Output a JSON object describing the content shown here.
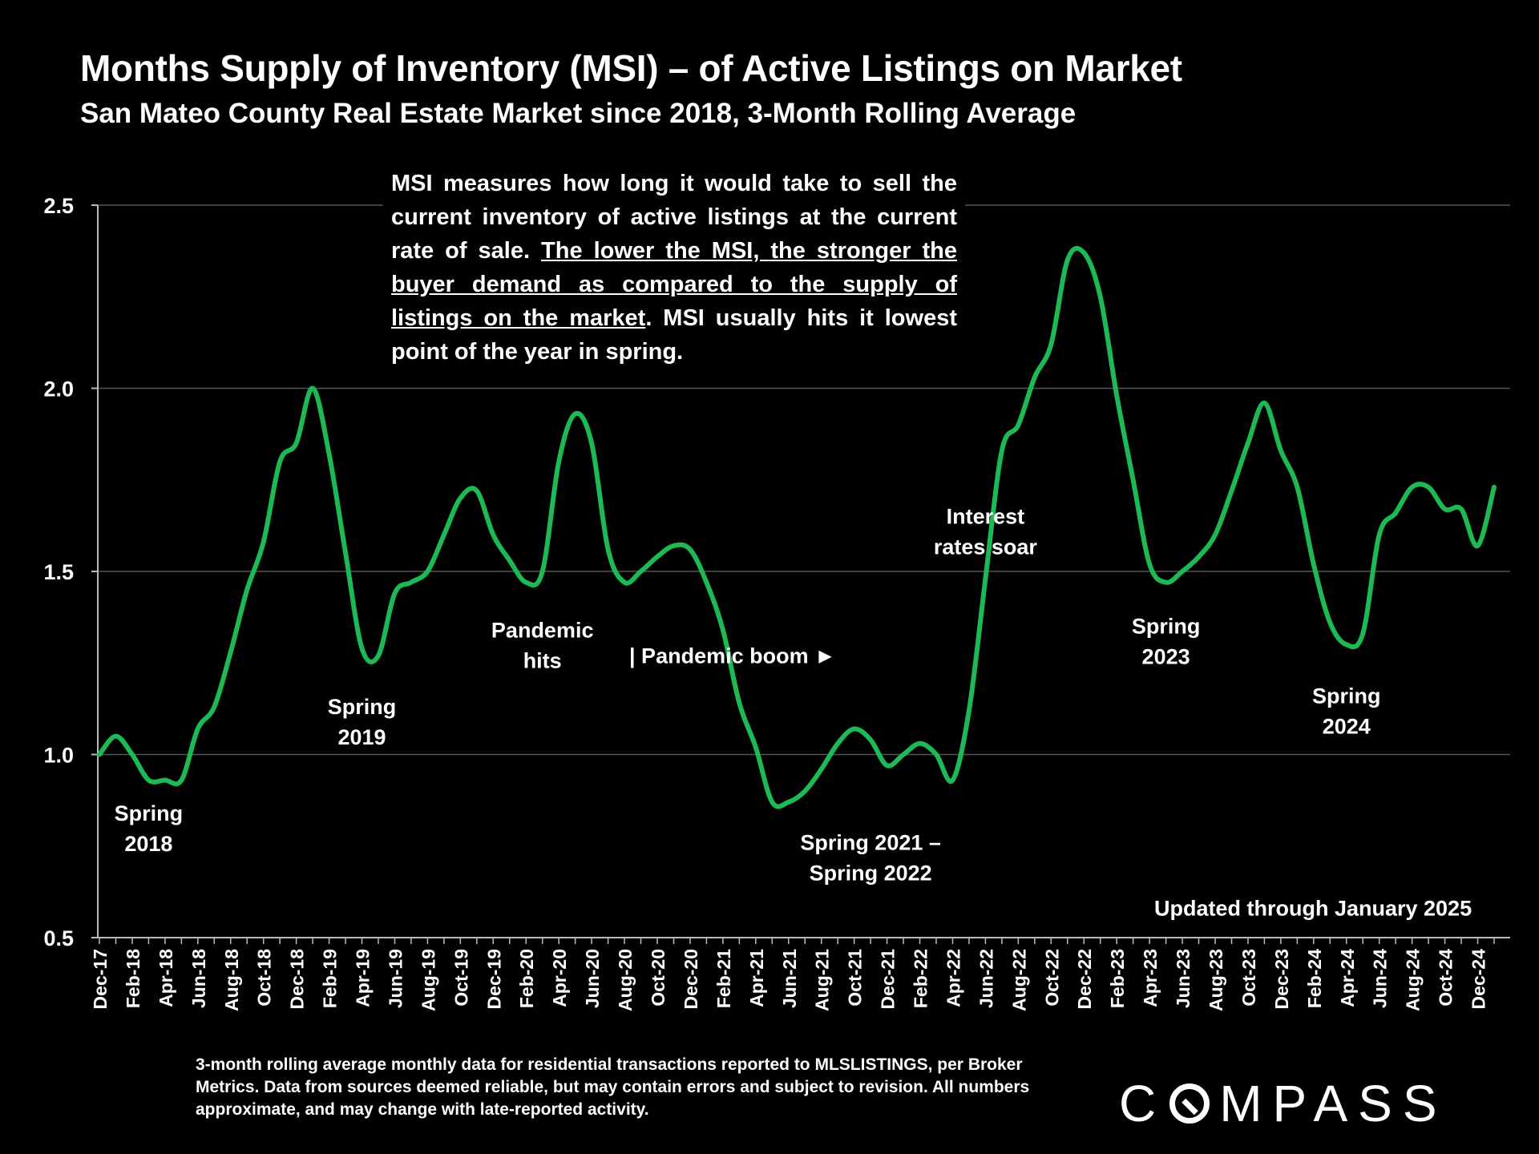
{
  "title": "Months Supply of Inventory (MSI) – of Active Listings on Market",
  "subtitle": "San Mateo County Real Estate Market since 2018, 3-Month Rolling Average",
  "note": {
    "part1": "MSI measures how long it would take to sell the current inventory of active listings at the current rate of sale. ",
    "underlined": "The lower the MSI, the stronger the buyer demand as compared to the supply of listings on the market",
    "part2": ".  MSI usually hits it lowest point of the year in spring."
  },
  "footnote": "3-month rolling average monthly data for residential transactions reported to MLSLISTINGS, per Broker Metrics. Data from sources deemed reliable, but may contain errors and subject to revision. All numbers approximate, and may change with late-reported activity.",
  "logo": {
    "left": "C",
    "right": "MPASS"
  },
  "colors": {
    "line": "#1db954",
    "background": "#000000",
    "text": "#ffffff",
    "grid": "#555555"
  },
  "chart_data": {
    "type": "line",
    "x": [
      "Dec-17",
      "Jan-18",
      "Feb-18",
      "Mar-18",
      "Apr-18",
      "May-18",
      "Jun-18",
      "Jul-18",
      "Aug-18",
      "Sep-18",
      "Oct-18",
      "Nov-18",
      "Dec-18",
      "Jan-19",
      "Feb-19",
      "Mar-19",
      "Apr-19",
      "May-19",
      "Jun-19",
      "Jul-19",
      "Aug-19",
      "Sep-19",
      "Oct-19",
      "Nov-19",
      "Dec-19",
      "Jan-20",
      "Feb-20",
      "Mar-20",
      "Apr-20",
      "May-20",
      "Jun-20",
      "Jul-20",
      "Aug-20",
      "Sep-20",
      "Oct-20",
      "Nov-20",
      "Dec-20",
      "Jan-21",
      "Feb-21",
      "Mar-21",
      "Apr-21",
      "May-21",
      "Jun-21",
      "Jul-21",
      "Aug-21",
      "Sep-21",
      "Oct-21",
      "Nov-21",
      "Dec-21",
      "Jan-22",
      "Feb-22",
      "Mar-22",
      "Apr-22",
      "May-22",
      "Jun-22",
      "Jul-22",
      "Aug-22",
      "Sep-22",
      "Oct-22",
      "Nov-22",
      "Dec-22",
      "Jan-23",
      "Feb-23",
      "Mar-23",
      "Apr-23",
      "May-23",
      "Jun-23",
      "Jul-23",
      "Aug-23",
      "Sep-23",
      "Oct-23",
      "Nov-23",
      "Dec-23",
      "Jan-24",
      "Feb-24",
      "Mar-24",
      "Apr-24",
      "May-24",
      "Jun-24",
      "Jul-24",
      "Aug-24",
      "Sep-24",
      "Oct-24",
      "Nov-24",
      "Dec-24",
      "Jan-25"
    ],
    "xticks": [
      "Dec-17",
      "Feb-18",
      "Apr-18",
      "Jun-18",
      "Aug-18",
      "Oct-18",
      "Dec-18",
      "Feb-19",
      "Apr-19",
      "Jun-19",
      "Aug-19",
      "Oct-19",
      "Dec-19",
      "Feb-20",
      "Apr-20",
      "Jun-20",
      "Aug-20",
      "Oct-20",
      "Dec-20",
      "Feb-21",
      "Apr-21",
      "Jun-21",
      "Aug-21",
      "Oct-21",
      "Dec-21",
      "Feb-22",
      "Apr-22",
      "Jun-22",
      "Aug-22",
      "Oct-22",
      "Dec-22",
      "Feb-23",
      "Apr-23",
      "Jun-23",
      "Aug-23",
      "Oct-23",
      "Dec-23",
      "Feb-24",
      "Apr-24",
      "Jun-24",
      "Aug-24",
      "Oct-24",
      "Dec-24"
    ],
    "series": [
      {
        "values": [
          1.0,
          1.05,
          1.0,
          0.93,
          0.93,
          0.93,
          1.07,
          1.13,
          1.28,
          1.45,
          1.58,
          1.8,
          1.85,
          2.0,
          1.82,
          1.55,
          1.29,
          1.27,
          1.44,
          1.47,
          1.5,
          1.6,
          1.7,
          1.72,
          1.6,
          1.53,
          1.47,
          1.5,
          1.8,
          1.93,
          1.85,
          1.56,
          1.47,
          1.5,
          1.54,
          1.57,
          1.56,
          1.47,
          1.34,
          1.14,
          1.02,
          0.87,
          0.87,
          0.9,
          0.96,
          1.03,
          1.07,
          1.04,
          0.97,
          1.0,
          1.03,
          1.0,
          0.93,
          1.12,
          1.48,
          1.83,
          1.9,
          2.03,
          2.12,
          2.35,
          2.37,
          2.25,
          1.98,
          1.75,
          1.52,
          1.47,
          1.5,
          1.54,
          1.6,
          1.72,
          1.85,
          1.96,
          1.83,
          1.73,
          1.52,
          1.36,
          1.3,
          1.33,
          1.6,
          1.66,
          1.73,
          1.73,
          1.67,
          1.67,
          1.57,
          1.73
        ]
      }
    ],
    "xlabel": "",
    "ylabel": "",
    "ylim": [
      0.5,
      2.5
    ],
    "yticks": [
      0.5,
      1.0,
      1.5,
      2.0,
      2.5
    ],
    "grid": true,
    "legend": "none",
    "annotations": [
      {
        "lines": [
          "Spring",
          "2018"
        ],
        "x": "Mar-18",
        "y": 0.82
      },
      {
        "lines": [
          "Spring",
          "2019"
        ],
        "x": "Apr-19",
        "y": 1.11
      },
      {
        "lines": [
          "Pandemic",
          "hits"
        ],
        "x": "Mar-20",
        "y": 1.32
      },
      {
        "lines": [
          "| Pandemic boom ►"
        ],
        "x": "Dec-20",
        "y": 1.25
      },
      {
        "lines": [
          "Spring 2021 –",
          "Spring 2022"
        ],
        "x": "Nov-21",
        "y": 0.74
      },
      {
        "lines": [
          "Interest",
          "rates soar"
        ],
        "x": "Jun-22",
        "y": 1.63
      },
      {
        "lines": [
          "Spring",
          "2023"
        ],
        "x": "May-23",
        "y": 1.33
      },
      {
        "lines": [
          "Spring",
          "2024"
        ],
        "x": "Apr-24",
        "y": 1.14
      },
      {
        "lines": [
          "Updated through January 2025"
        ],
        "x": "Sep-24",
        "y": 0.56
      }
    ]
  }
}
